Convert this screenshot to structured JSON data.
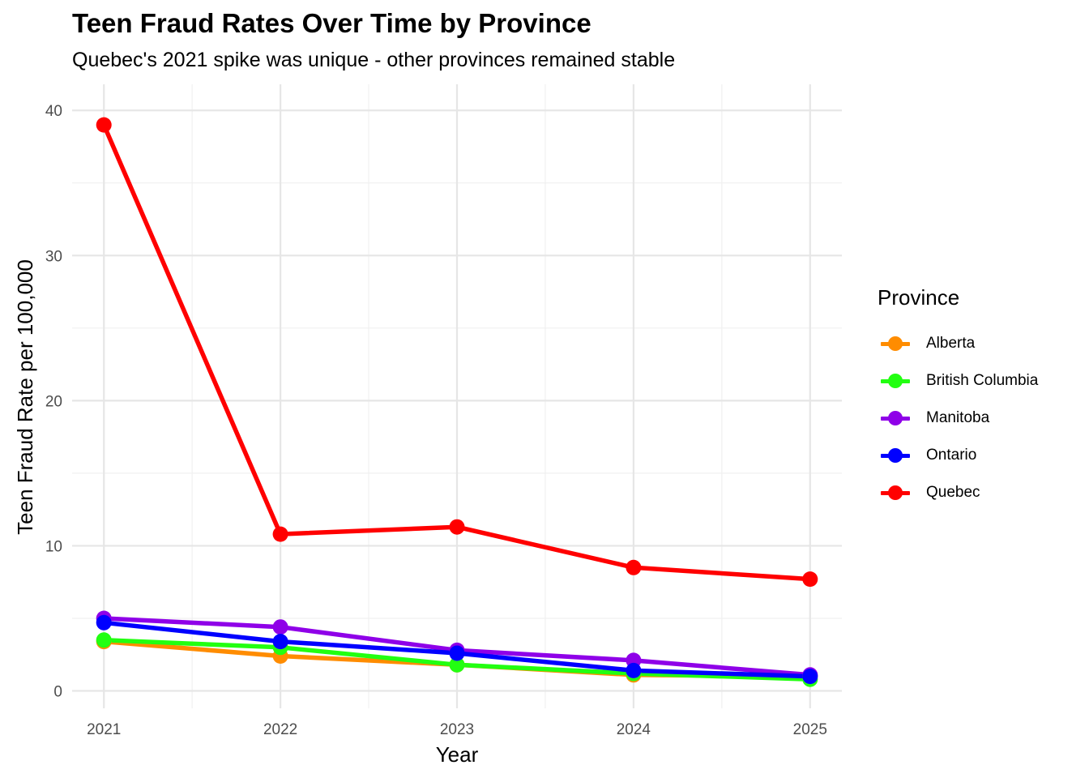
{
  "chart_data": {
    "type": "line",
    "title": "Teen Fraud Rates Over Time by Province",
    "subtitle": "Quebec's 2021 spike was unique - other provinces remained stable",
    "xlabel": "Year",
    "ylabel": "Teen Fraud Rate per 100,000",
    "x": [
      2021,
      2022,
      2023,
      2024,
      2025
    ],
    "x_tick_labels": [
      "2021",
      "2022",
      "2023",
      "2024",
      "2025"
    ],
    "xlim": [
      2020.82,
      2025.18
    ],
    "ylim": [
      -1.2,
      41.8
    ],
    "y_ticks": [
      0,
      10,
      20,
      30,
      40
    ],
    "y_tick_labels": [
      "0",
      "10",
      "20",
      "30",
      "40"
    ],
    "grid": true,
    "legend_title": "Province",
    "legend_position": "right",
    "series": [
      {
        "name": "Alberta",
        "color": "#FF8C00",
        "values": [
          3.4,
          2.4,
          1.8,
          1.1,
          1.0
        ]
      },
      {
        "name": "British Columbia",
        "color": "#22FF11",
        "values": [
          3.5,
          3.0,
          1.8,
          1.2,
          0.8
        ]
      },
      {
        "name": "Manitoba",
        "color": "#8F00E8",
        "values": [
          5.0,
          4.4,
          2.8,
          2.1,
          1.1
        ]
      },
      {
        "name": "Ontario",
        "color": "#0000FF",
        "values": [
          4.7,
          3.4,
          2.6,
          1.4,
          1.0
        ]
      },
      {
        "name": "Quebec",
        "color": "#FF0000",
        "values": [
          39.0,
          10.8,
          11.3,
          8.5,
          7.7
        ]
      }
    ]
  }
}
